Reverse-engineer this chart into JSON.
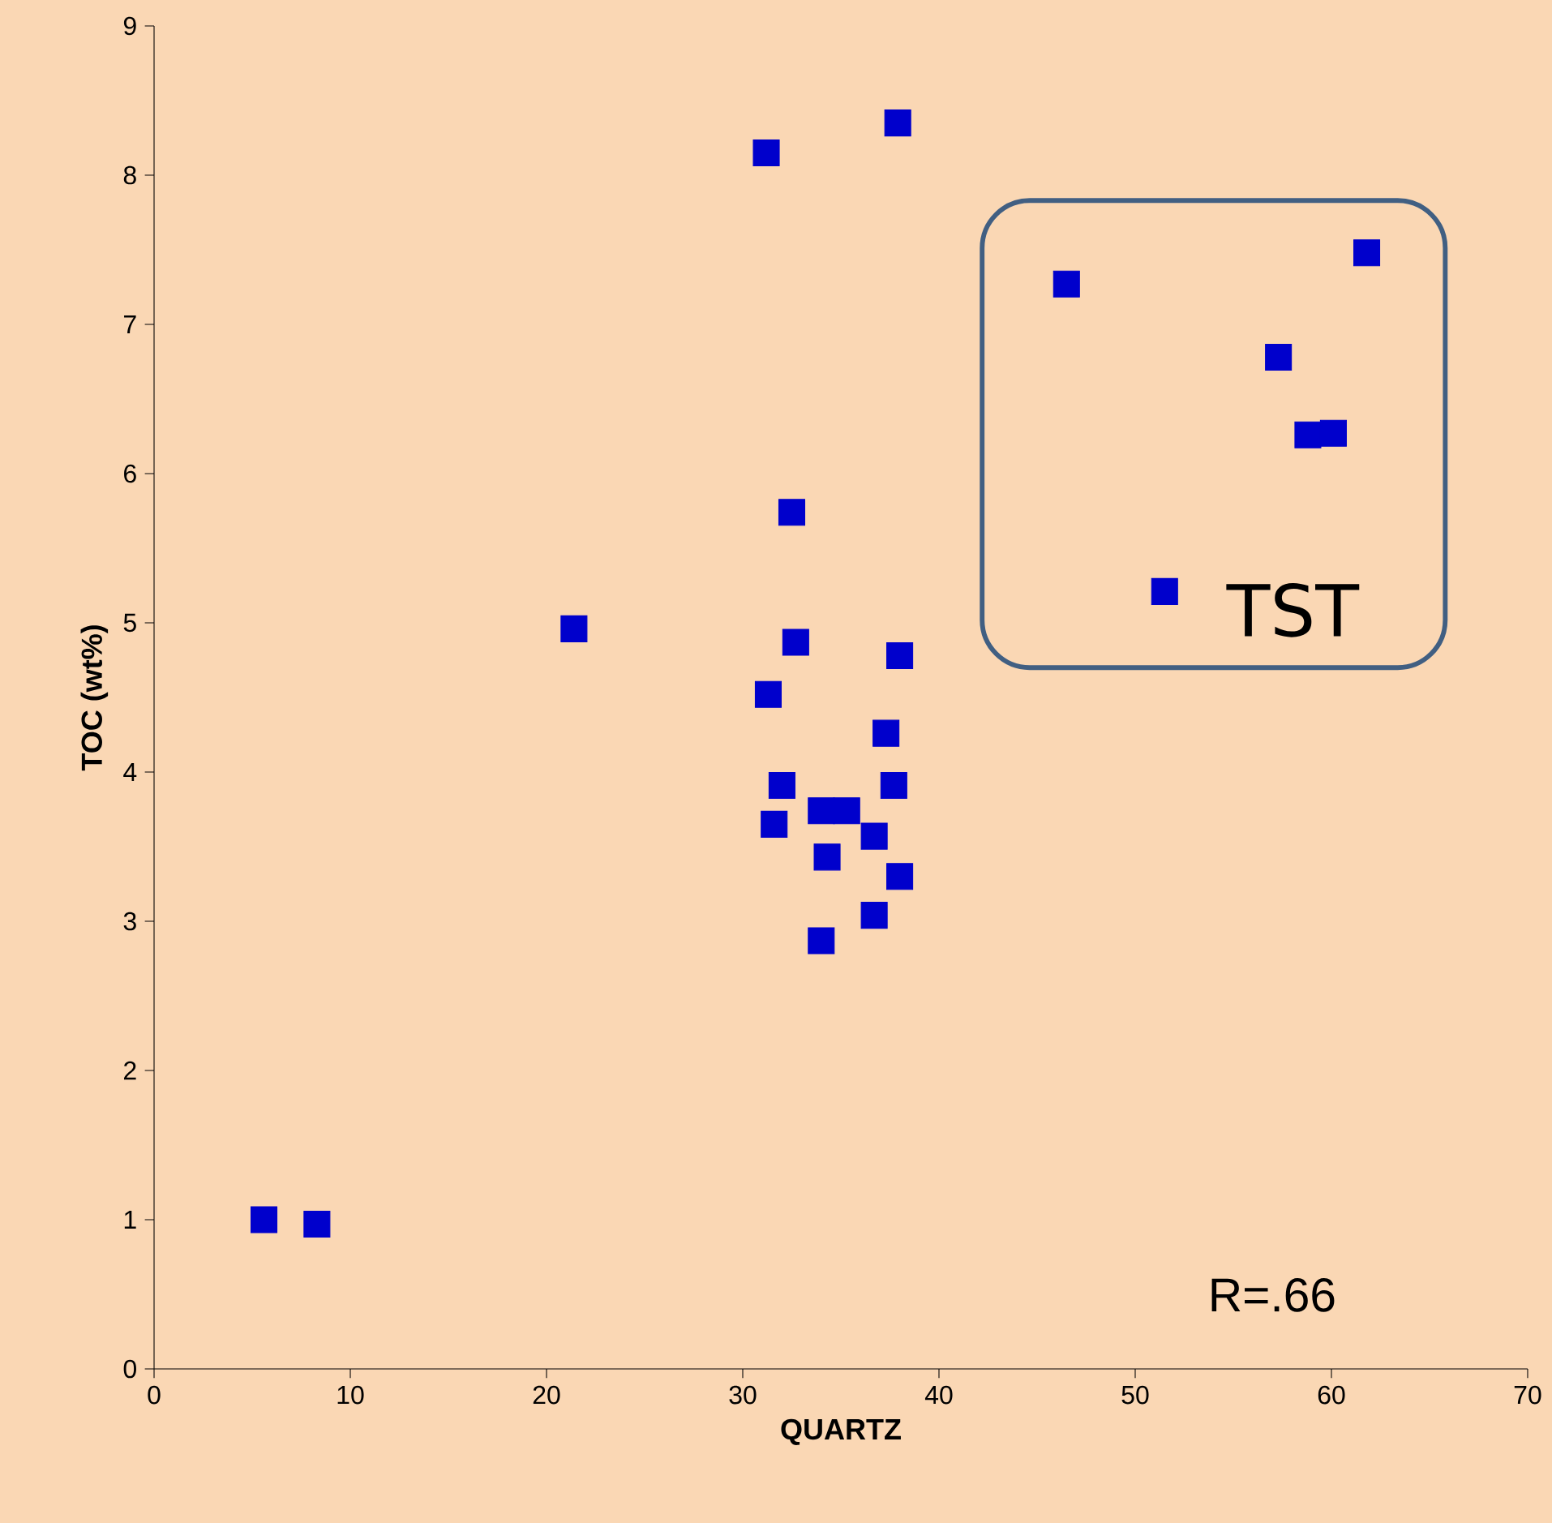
{
  "chart_data": {
    "type": "scatter",
    "xlabel": "QUARTZ",
    "ylabel": "TOC (wt%)",
    "xlim": [
      0,
      70
    ],
    "ylim": [
      0,
      9
    ],
    "xticks": [
      0,
      10,
      20,
      30,
      40,
      50,
      60,
      70
    ],
    "yticks": [
      0,
      1,
      2,
      3,
      4,
      5,
      6,
      7,
      8,
      9
    ],
    "grid": false,
    "marker": "square",
    "series": [
      {
        "color": "#0000cc",
        "x": [
          5.6,
          8.3,
          21.4,
          31.2,
          37.9,
          32.5,
          32.7,
          38.0,
          31.3,
          37.3,
          32.0,
          37.7,
          31.6,
          34.0,
          35.3,
          34.3,
          36.7,
          38.0,
          36.7,
          34.0,
          46.5,
          61.8,
          57.3,
          58.8,
          60.1,
          51.5
        ],
        "values": [
          1.0,
          0.97,
          4.96,
          8.15,
          8.35,
          5.74,
          4.87,
          4.78,
          4.52,
          4.26,
          3.91,
          3.91,
          3.65,
          3.74,
          3.74,
          3.43,
          3.57,
          3.3,
          3.04,
          2.87,
          7.27,
          7.48,
          6.78,
          6.26,
          6.27,
          5.21
        ]
      }
    ],
    "annotations": [
      "TST",
      "R=.66"
    ]
  }
}
